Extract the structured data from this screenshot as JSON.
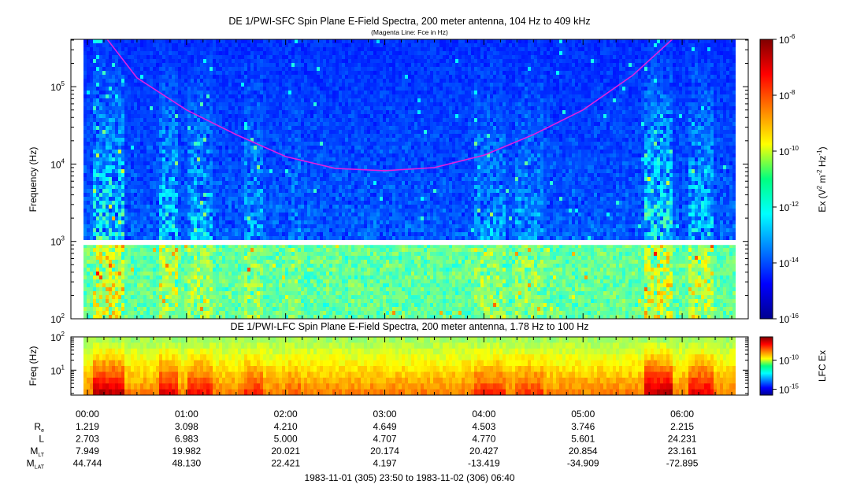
{
  "chart_data": [
    {
      "type": "heatmap",
      "title": "DE 1/PWI-SFC  Spin Plane E-Field Spectra, 200 meter antenna, 104 Hz to 409 kHz",
      "subtitle": "(Magenta Line: Fce in Hz)",
      "ylabel": "Frequency (Hz)",
      "yscale": "log",
      "ylim": [
        100,
        409000
      ],
      "yticks": [
        {
          "value": 100,
          "base": "10",
          "exp": "2"
        },
        {
          "value": 1000,
          "base": "10",
          "exp": "3"
        },
        {
          "value": 10000,
          "base": "10",
          "exp": "4"
        },
        {
          "value": 100000,
          "base": "10",
          "exp": "5"
        }
      ],
      "data_gap_hz": [
        900,
        1040
      ],
      "fce_line": {
        "color": "#e020e0",
        "points": [
          [
            0.2,
            409000
          ],
          [
            0.5,
            130000
          ],
          [
            1.0,
            50000
          ],
          [
            1.5,
            24000
          ],
          [
            2.0,
            12500
          ],
          [
            2.5,
            8800
          ],
          [
            3.0,
            8200
          ],
          [
            3.5,
            9000
          ],
          [
            4.0,
            13000
          ],
          [
            4.5,
            24000
          ],
          [
            5.0,
            50000
          ],
          [
            5.5,
            140000
          ],
          [
            5.9,
            409000
          ]
        ]
      },
      "colorbar": {
        "label_pre": "Ex (V",
        "label_sup1": "2",
        "label_mid": " m",
        "label_sup2": "-2",
        "label_mid2": " Hz",
        "label_sup3": "-1",
        "label_post": ")",
        "scale": "log",
        "range": [
          1e-16,
          1e-06
        ],
        "ticks": [
          {
            "value": -6,
            "base": "10",
            "exp": "-6"
          },
          {
            "value": -8,
            "base": "10",
            "exp": "-8"
          },
          {
            "value": -10,
            "base": "10",
            "exp": "-10"
          },
          {
            "value": -12,
            "base": "10",
            "exp": "-12"
          },
          {
            "value": -14,
            "base": "10",
            "exp": "-14"
          },
          {
            "value": -16,
            "base": "10",
            "exp": "-16"
          }
        ]
      }
    },
    {
      "type": "heatmap",
      "title": "DE 1/PWI-LFC  Spin Plane E-Field Spectra, 200 meter antenna, 1.78 Hz to 100 Hz",
      "ylabel": "Freq (Hz)",
      "yscale": "log",
      "ylim": [
        1.78,
        100
      ],
      "yticks": [
        {
          "value": 10,
          "base": "10",
          "exp": "1"
        },
        {
          "value": 100,
          "base": "10",
          "exp": "2"
        }
      ],
      "colorbar": {
        "label": "LFC Ex",
        "scale": "log",
        "range": [
          1e-16,
          1e-06
        ],
        "ticks": [
          {
            "value": -10,
            "base": "10",
            "exp": "-10"
          },
          {
            "value": -15,
            "base": "10",
            "exp": "-15"
          }
        ]
      }
    }
  ],
  "time_axis": {
    "x_start_hours": -0.1667,
    "x_end_hours": 6.6667,
    "ticks": [
      "00:00",
      "01:00",
      "02:00",
      "03:00",
      "04:00",
      "05:00",
      "06:00"
    ],
    "rows": [
      {
        "label": "R",
        "sub": "e",
        "values": [
          "1.219",
          "3.098",
          "4.210",
          "4.649",
          "4.503",
          "3.746",
          "2.215"
        ]
      },
      {
        "label": "L",
        "sub": "",
        "values": [
          "2.703",
          "6.983",
          "5.000",
          "4.707",
          "4.770",
          "5.601",
          "24.231"
        ]
      },
      {
        "label": "M",
        "sub": "LT",
        "values": [
          "7.949",
          "19.982",
          "20.021",
          "20.174",
          "20.427",
          "20.854",
          "23.161"
        ]
      },
      {
        "label": "M",
        "sub": "LAT",
        "values": [
          "44.744",
          "48.130",
          "22.421",
          "4.197",
          "-13.419",
          "-34.909",
          "-72.895"
        ]
      }
    ],
    "range_label": "1983-11-01 (305) 23:50 to 1983-11-02 (306) 06:40"
  }
}
